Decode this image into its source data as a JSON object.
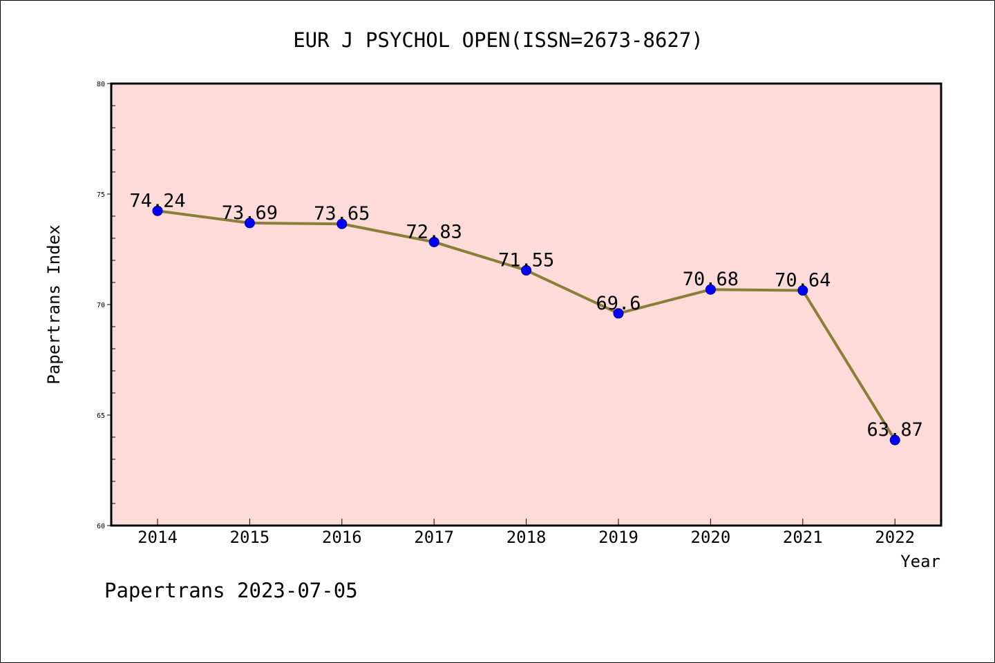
{
  "chart_data": {
    "type": "line",
    "title": "EUR J PSYCHOL OPEN(ISSN=2673-8627)",
    "xlabel": "Year",
    "ylabel": "Papertrans Index",
    "categories": [
      "2014",
      "2015",
      "2016",
      "2017",
      "2018",
      "2019",
      "2020",
      "2021",
      "2022"
    ],
    "series": [
      {
        "values": [
          74.24,
          73.69,
          73.65,
          72.83,
          71.55,
          69.6,
          70.68,
          70.64,
          63.87
        ],
        "data_labels": [
          "74.24",
          "73.69",
          "73.65",
          "72.83",
          "71.55",
          "69.6",
          "70.68",
          "70.64",
          "63.87"
        ],
        "line_color": "#8b7d3a",
        "marker_color": "#0000ff"
      }
    ],
    "ylim": [
      60,
      80
    ],
    "yticks": [
      "60",
      "65",
      "70",
      "75",
      "80"
    ],
    "minor_tick_step": 1,
    "grid": false,
    "legend": "none",
    "plot_background": "#fddbd8",
    "footer": "Papertrans 2023-07-05"
  }
}
